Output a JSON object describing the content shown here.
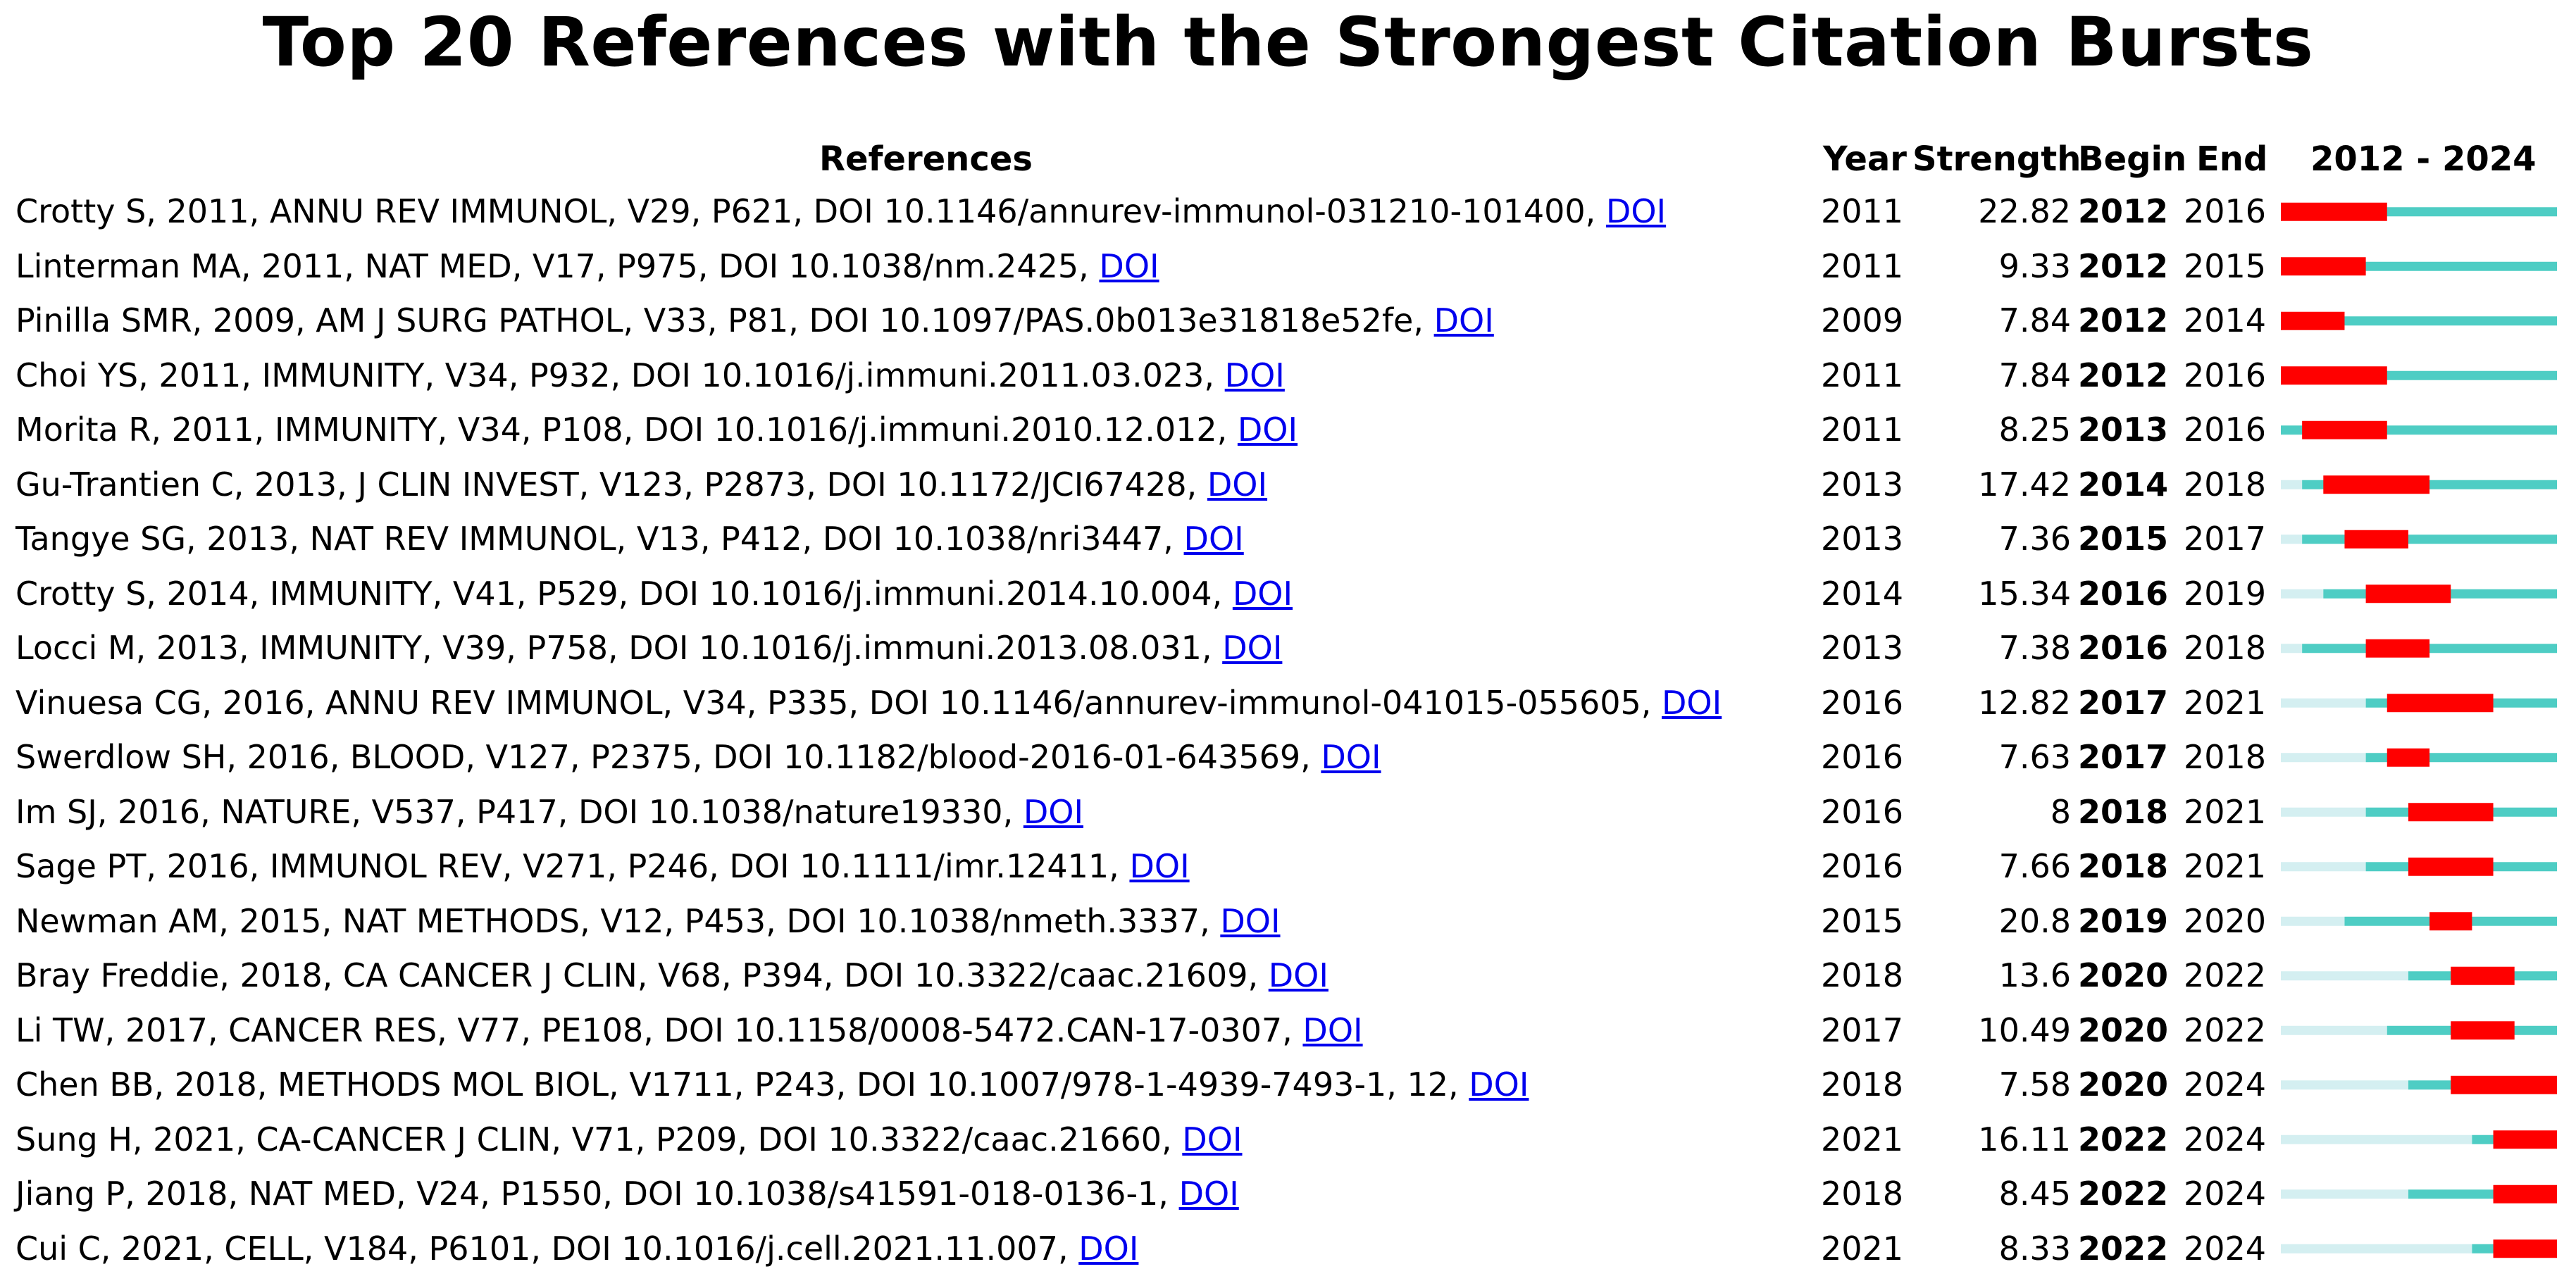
{
  "title": "Top 20 References with the Strongest Citation Bursts",
  "headers": {
    "references": "References",
    "year": "Year",
    "strength": "Strength",
    "begin": "Begin",
    "end": "End",
    "range": "2012 - 2024"
  },
  "colors": {
    "burst": "#ff0000",
    "active": "#4ecdc4",
    "inactive": "#d4eff1"
  },
  "chart_data": {
    "type": "table",
    "title": "Top 20 References with the Strongest Citation Bursts",
    "timeline": {
      "start": 2012,
      "end": 2024
    },
    "rows": [
      {
        "ref": "Crotty S, 2011, ANNU REV IMMUNOL, V29, P621, DOI 10.1146/annurev-immunol-031210-101400, ",
        "link": "DOI",
        "year": 2011,
        "strength": "22.82",
        "begin": 2012,
        "end": 2016
      },
      {
        "ref": "Linterman MA, 2011, NAT MED, V17, P975, DOI 10.1038/nm.2425, ",
        "link": "DOI",
        "year": 2011,
        "strength": "9.33",
        "begin": 2012,
        "end": 2015
      },
      {
        "ref": "Pinilla SMR, 2009, AM J SURG PATHOL, V33, P81, DOI 10.1097/PAS.0b013e31818e52fe, ",
        "link": "DOI",
        "year": 2009,
        "strength": "7.84",
        "begin": 2012,
        "end": 2014
      },
      {
        "ref": "Choi YS, 2011, IMMUNITY, V34, P932, DOI 10.1016/j.immuni.2011.03.023, ",
        "link": "DOI",
        "year": 2011,
        "strength": "7.84",
        "begin": 2012,
        "end": 2016
      },
      {
        "ref": "Morita R, 2011, IMMUNITY, V34, P108, DOI 10.1016/j.immuni.2010.12.012, ",
        "link": "DOI",
        "year": 2011,
        "strength": "8.25",
        "begin": 2013,
        "end": 2016
      },
      {
        "ref": "Gu-Trantien C, 2013, J CLIN INVEST, V123, P2873, DOI 10.1172/JCI67428, ",
        "link": "DOI",
        "year": 2013,
        "strength": "17.42",
        "begin": 2014,
        "end": 2018
      },
      {
        "ref": "Tangye SG, 2013, NAT REV IMMUNOL, V13, P412, DOI 10.1038/nri3447, ",
        "link": "DOI",
        "year": 2013,
        "strength": "7.36",
        "begin": 2015,
        "end": 2017
      },
      {
        "ref": "Crotty S, 2014, IMMUNITY, V41, P529, DOI 10.1016/j.immuni.2014.10.004, ",
        "link": "DOI",
        "year": 2014,
        "strength": "15.34",
        "begin": 2016,
        "end": 2019
      },
      {
        "ref": "Locci M, 2013, IMMUNITY, V39, P758, DOI 10.1016/j.immuni.2013.08.031, ",
        "link": "DOI",
        "year": 2013,
        "strength": "7.38",
        "begin": 2016,
        "end": 2018
      },
      {
        "ref": "Vinuesa CG, 2016, ANNU REV IMMUNOL, V34, P335, DOI 10.1146/annurev-immunol-041015-055605, ",
        "link": "DOI",
        "year": 2016,
        "strength": "12.82",
        "begin": 2017,
        "end": 2021
      },
      {
        "ref": "Swerdlow SH, 2016, BLOOD, V127, P2375, DOI 10.1182/blood-2016-01-643569, ",
        "link": "DOI",
        "year": 2016,
        "strength": "7.63",
        "begin": 2017,
        "end": 2018
      },
      {
        "ref": "Im SJ, 2016, NATURE, V537, P417, DOI 10.1038/nature19330, ",
        "link": "DOI",
        "year": 2016,
        "strength": "8",
        "begin": 2018,
        "end": 2021
      },
      {
        "ref": "Sage PT, 2016, IMMUNOL REV, V271, P246, DOI 10.1111/imr.12411, ",
        "link": "DOI",
        "year": 2016,
        "strength": "7.66",
        "begin": 2018,
        "end": 2021
      },
      {
        "ref": "Newman AM, 2015, NAT METHODS, V12, P453, DOI 10.1038/nmeth.3337, ",
        "link": "DOI",
        "year": 2015,
        "strength": "20.8",
        "begin": 2019,
        "end": 2020
      },
      {
        "ref": "Bray Freddie, 2018, CA CANCER J CLIN, V68, P394, DOI 10.3322/caac.21609, ",
        "link": "DOI",
        "year": 2018,
        "strength": "13.6",
        "begin": 2020,
        "end": 2022
      },
      {
        "ref": "Li TW, 2017, CANCER RES, V77, PE108, DOI 10.1158/0008-5472.CAN-17-0307, ",
        "link": "DOI",
        "year": 2017,
        "strength": "10.49",
        "begin": 2020,
        "end": 2022
      },
      {
        "ref": "Chen BB, 2018, METHODS MOL BIOL, V1711, P243, DOI 10.1007/978-1-4939-7493-1, 12, ",
        "link": "DOI",
        "year": 2018,
        "strength": "7.58",
        "begin": 2020,
        "end": 2024
      },
      {
        "ref": "Sung H, 2021, CA-CANCER J CLIN, V71, P209, DOI 10.3322/caac.21660, ",
        "link": "DOI",
        "year": 2021,
        "strength": "16.11",
        "begin": 2022,
        "end": 2024
      },
      {
        "ref": "Jiang P, 2018, NAT MED, V24, P1550, DOI 10.1038/s41591-018-0136-1, ",
        "link": "DOI",
        "year": 2018,
        "strength": "8.45",
        "begin": 2022,
        "end": 2024
      },
      {
        "ref": "Cui C, 2021, CELL, V184, P6101, DOI 10.1016/j.cell.2021.11.007, ",
        "link": "DOI",
        "year": 2021,
        "strength": "8.33",
        "begin": 2022,
        "end": 2024
      }
    ]
  }
}
